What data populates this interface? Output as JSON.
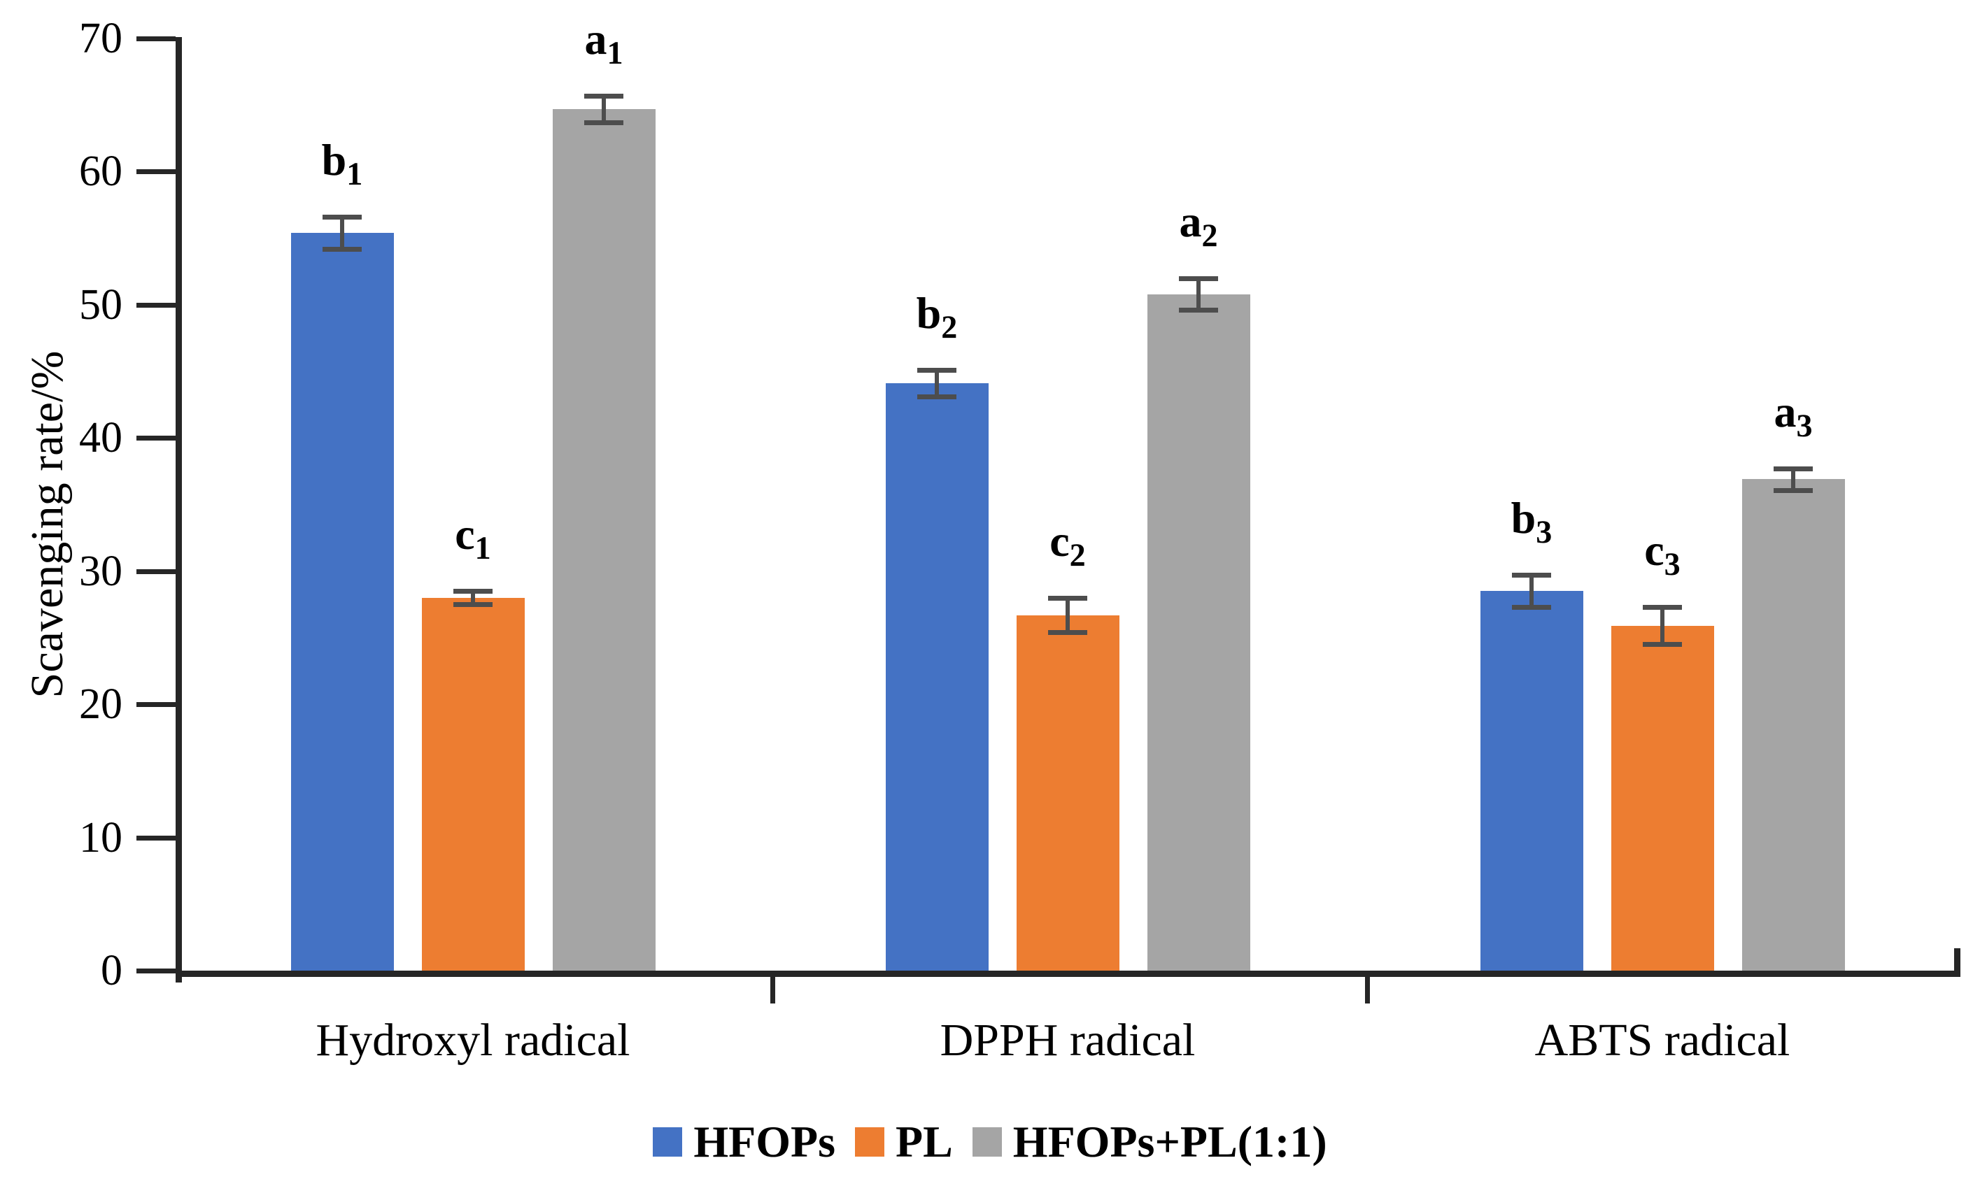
{
  "chart_data": {
    "type": "bar",
    "title": "",
    "xlabel": "",
    "ylabel": "Scavenging rate/%",
    "ylim": [
      0,
      70
    ],
    "ytick_step": 10,
    "grid": false,
    "legend_position": "bottom",
    "categories": [
      "Hydroxyl radical",
      "DPPH radical",
      "ABTS radical"
    ],
    "series": [
      {
        "name": "HFOPs",
        "color": "#4472C4",
        "values": [
          55.4,
          44.1,
          28.5
        ],
        "errors": [
          1.2,
          1.0,
          1.2
        ],
        "sig_labels": [
          "b1",
          "b2",
          "b3"
        ]
      },
      {
        "name": "PL",
        "color": "#ED7D31",
        "values": [
          28.0,
          26.7,
          25.9
        ],
        "errors": [
          0.5,
          1.3,
          1.4
        ],
        "sig_labels": [
          "c1",
          "c2",
          "c3"
        ]
      },
      {
        "name": "HFOPs+PL(1:1)",
        "color": "#A5A5A5",
        "values": [
          64.7,
          50.8,
          36.9
        ],
        "errors": [
          1.0,
          1.2,
          0.8
        ],
        "sig_labels": [
          "a1",
          "a2",
          "a3"
        ]
      }
    ],
    "yticks": [
      0,
      10,
      20,
      30,
      40,
      50,
      60,
      70
    ],
    "error_bar_color": "#4d4d4d",
    "axis_color": "#262626"
  }
}
